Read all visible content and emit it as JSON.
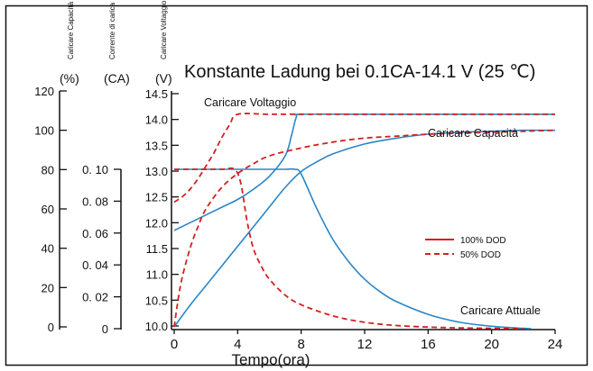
{
  "chart_data": {
    "type": "line",
    "title": "Konstante Ladung bei 0.1CA-14.1 V (25 ℃)",
    "xlabel": "Tempo(ora)",
    "x_ticks": [
      "0",
      "4",
      "8",
      "12",
      "16",
      "20",
      "24"
    ],
    "xlim": [
      0,
      24
    ],
    "axes": {
      "capacity": {
        "name": "Caricare Capacità",
        "unit": "(%)",
        "ticks": [
          "120",
          "100",
          "80",
          "60",
          "40",
          "20",
          "0"
        ],
        "range": [
          0,
          120
        ]
      },
      "current": {
        "name": "Corrente di carica",
        "unit": "(CA)",
        "ticks": [
          "0. 10",
          "0. 08",
          "0. 06",
          "0. 04",
          "0. 02",
          "0"
        ],
        "range": [
          0,
          0.1
        ]
      },
      "voltage": {
        "name": "Caricare Voltaggio",
        "unit": "(V)",
        "ticks": [
          "14.5",
          "14.0",
          "13.5",
          "13.0",
          "12.5",
          "12.0",
          "11.5",
          "11.0",
          "10.5",
          "10.0"
        ],
        "range": [
          10,
          14.5
        ]
      }
    },
    "curve_labels": {
      "voltage": "Caricare Voltaggio",
      "capacity": "Caricare Capacità",
      "current": "Caricare Attuale"
    },
    "legend": {
      "placement": "center-right",
      "entries": [
        {
          "label": "100% DOD",
          "style": "solid",
          "color": "#cc0000"
        },
        {
          "label": "50% DOD",
          "style": "dashed",
          "color": "#cc0000"
        }
      ]
    },
    "colors": {
      "curve": "#2a86c8",
      "dashed": "#d42020",
      "axis": "#111111"
    },
    "series": [
      {
        "name": "Caricare Voltaggio",
        "dod": "100% DOD",
        "axis": "voltage",
        "x": [
          0,
          1,
          2,
          3,
          4,
          5,
          6,
          7,
          7.4,
          7.7,
          8,
          12,
          16,
          20,
          24
        ],
        "y": [
          11.85,
          12.0,
          12.15,
          12.3,
          12.45,
          12.65,
          12.9,
          13.3,
          13.7,
          14.05,
          14.1,
          14.1,
          14.1,
          14.1,
          14.1
        ]
      },
      {
        "name": "Caricare Voltaggio",
        "dod": "50% DOD",
        "axis": "voltage",
        "x": [
          0,
          0.5,
          1,
          1.5,
          2,
          2.5,
          3,
          3.5,
          4,
          6,
          8,
          12,
          16,
          20,
          24
        ],
        "y": [
          12.4,
          12.5,
          12.65,
          12.85,
          13.1,
          13.35,
          13.65,
          13.9,
          14.1,
          14.1,
          14.1,
          14.1,
          14.1,
          14.1,
          14.1
        ]
      },
      {
        "name": "Caricare Capacità",
        "dod": "100% DOD",
        "axis": "capacity",
        "x": [
          0,
          1,
          2,
          3,
          4,
          5,
          6,
          7,
          8,
          9,
          10,
          12,
          14,
          16,
          18,
          20,
          22,
          24
        ],
        "y": [
          0,
          11,
          21,
          31,
          41,
          51,
          61,
          71,
          79,
          84,
          88,
          93,
          96,
          98,
          99,
          99.5,
          100,
          100
        ]
      },
      {
        "name": "Caricare Capacità",
        "dod": "50% DOD",
        "axis": "capacity",
        "x": [
          0,
          0.25,
          0.5,
          1,
          1.5,
          2,
          3,
          4,
          5,
          6,
          8,
          10,
          12,
          14,
          16,
          20,
          24
        ],
        "y": [
          0,
          14,
          25,
          40,
          51,
          60,
          71,
          78,
          83,
          87,
          91,
          94,
          96,
          97,
          98,
          99,
          100
        ]
      },
      {
        "name": "Caricare Attuale",
        "dod": "100% DOD",
        "axis": "current",
        "x": [
          0,
          2,
          4,
          6,
          7,
          7.6,
          8,
          9,
          10,
          11,
          12,
          13,
          14,
          16,
          18,
          20,
          22,
          22.5
        ],
        "y": [
          0.1,
          0.1,
          0.1,
          0.1,
          0.1,
          0.1,
          0.097,
          0.075,
          0.056,
          0.042,
          0.031,
          0.023,
          0.017,
          0.009,
          0.004,
          0.0015,
          0.0002,
          0
        ]
      },
      {
        "name": "Caricare Attuale",
        "dod": "50% DOD",
        "axis": "current",
        "x": [
          0,
          1,
          2,
          3,
          3.8,
          4.2,
          4.6,
          5,
          5.5,
          6,
          7,
          8,
          10,
          12,
          14,
          16,
          18,
          20,
          22
        ],
        "y": [
          0.1,
          0.1,
          0.1,
          0.1,
          0.1,
          0.091,
          0.067,
          0.05,
          0.039,
          0.031,
          0.021,
          0.015,
          0.008,
          0.004,
          0.002,
          0.001,
          0.0005,
          0.0002,
          0
        ]
      }
    ]
  }
}
